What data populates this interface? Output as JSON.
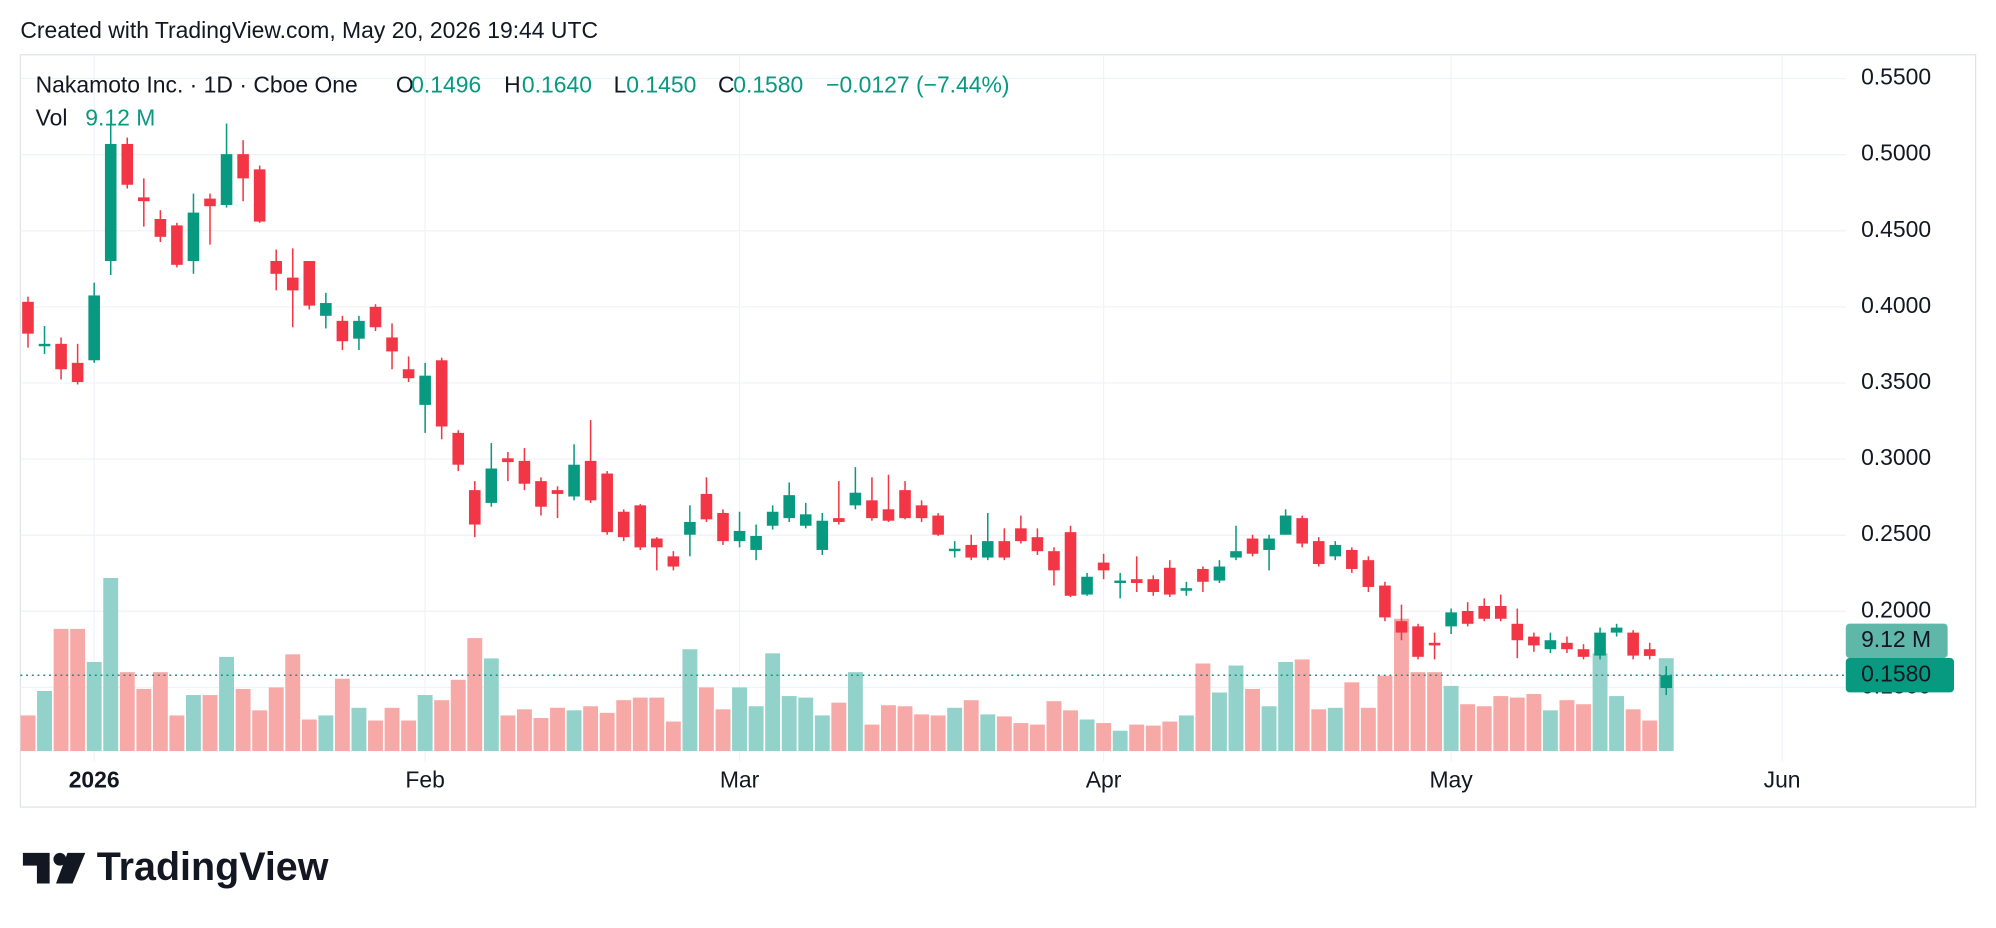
{
  "watermark": "Created with TradingView.com, May 20, 2026 19:44 UTC",
  "branding": "TradingView",
  "chart_data": {
    "type": "candlestick",
    "legend": {
      "symbol": "Nakamoto Inc. · 1D · Cboe One",
      "open_prefix": "O",
      "open_label": "0.1496",
      "high_prefix": "H",
      "high_label": "0.1640",
      "low_prefix": "L",
      "low_label": "0.1450",
      "close_prefix": "C",
      "close_label": "0.1580",
      "change_label": "−0.0127 (−7.44%)",
      "volume_prefix": "Vol",
      "volume_label": "9.12 M"
    },
    "up_color": "#089981",
    "down_color": "#f23645",
    "volume_up_color": "#92d2ca",
    "volume_down_color": "#f7a9a7",
    "volume_tag_color": "#5fb7aa",
    "grid": true,
    "open": [
      0.4033,
      0.3741,
      0.3757,
      0.3632,
      0.3649,
      0.4301,
      0.507,
      0.4719,
      0.4577,
      0.4535,
      0.4301,
      0.4711,
      0.4669,
      0.5003,
      0.4903,
      0.4301,
      0.4192,
      0.4301,
      0.3941,
      0.3908,
      0.3791,
      0.4,
      0.3799,
      0.359,
      0.3356,
      0.3649,
      0.3172,
      0.2796,
      0.2712,
      0.3005,
      0.2988,
      0.2855,
      0.2796,
      0.2754,
      0.2988,
      0.2905,
      0.2654,
      0.2696,
      0.2478,
      0.2361,
      0.2503,
      0.2771,
      0.2646,
      0.2461,
      0.2403,
      0.2562,
      0.2612,
      0.2562,
      0.2403,
      0.2612,
      0.2696,
      0.2729,
      0.267,
      0.2796,
      0.2696,
      0.2629,
      0.2395,
      0.2436,
      0.2353,
      0.2461,
      0.2545,
      0.2487,
      0.2395,
      0.252,
      0.211,
      0.232,
      0.2186,
      0.2211,
      0.2211,
      0.2286,
      0.2135,
      0.2278,
      0.2202,
      0.2353,
      0.2478,
      0.2403,
      0.2503,
      0.2612,
      0.2461,
      0.2361,
      0.2403,
      0.2336,
      0.2169,
      0.1935,
      0.1901,
      0.1793,
      0.1901,
      0.2002,
      0.2035,
      0.2035,
      0.1918,
      0.1834,
      0.1751,
      0.1793,
      0.1751,
      0.1709,
      0.186,
      0.186,
      0.1751,
      0.1496
    ],
    "high": [
      0.4067,
      0.3874,
      0.3799,
      0.3757,
      0.4159,
      0.5195,
      0.5112,
      0.4844,
      0.4635,
      0.4552,
      0.4744,
      0.4744,
      0.5204,
      0.5095,
      0.4928,
      0.4376,
      0.4384,
      0.4301,
      0.4092,
      0.3941,
      0.3941,
      0.4017,
      0.3891,
      0.3674,
      0.3632,
      0.3666,
      0.3189,
      0.2855,
      0.3105,
      0.3047,
      0.3072,
      0.288,
      0.2821,
      0.3097,
      0.3256,
      0.2921,
      0.267,
      0.2704,
      0.2487,
      0.2395,
      0.2696,
      0.288,
      0.267,
      0.2654,
      0.257,
      0.2696,
      0.2846,
      0.2712,
      0.2646,
      0.2855,
      0.2947,
      0.288,
      0.2897,
      0.2855,
      0.2729,
      0.2645,
      0.2461,
      0.2503,
      0.2646,
      0.2545,
      0.2629,
      0.2545,
      0.242,
      0.2562,
      0.2252,
      0.2378,
      0.2252,
      0.2361,
      0.2236,
      0.2336,
      0.2194,
      0.2295,
      0.2336,
      0.2562,
      0.2503,
      0.2503,
      0.267,
      0.2629,
      0.2487,
      0.2461,
      0.242,
      0.2361,
      0.2194,
      0.2044,
      0.1918,
      0.186,
      0.2018,
      0.206,
      0.2085,
      0.211,
      0.2018,
      0.186,
      0.186,
      0.1834,
      0.1784,
      0.1893,
      0.1918,
      0.1876,
      0.1793,
      0.164
    ],
    "low": [
      0.3732,
      0.369,
      0.3523,
      0.349,
      0.3632,
      0.4209,
      0.4777,
      0.4527,
      0.4426,
      0.4259,
      0.4217,
      0.4409,
      0.4652,
      0.4694,
      0.4552,
      0.4108,
      0.3866,
      0.3983,
      0.3858,
      0.3716,
      0.3716,
      0.3841,
      0.359,
      0.3506,
      0.3172,
      0.313,
      0.2921,
      0.2487,
      0.2687,
      0.2855,
      0.2796,
      0.2629,
      0.2612,
      0.2729,
      0.2712,
      0.2503,
      0.2461,
      0.2403,
      0.2269,
      0.2269,
      0.2361,
      0.2587,
      0.2436,
      0.242,
      0.2336,
      0.2537,
      0.2587,
      0.2545,
      0.237,
      0.257,
      0.267,
      0.2595,
      0.2587,
      0.2604,
      0.2587,
      0.2495,
      0.2353,
      0.2336,
      0.2336,
      0.2336,
      0.2445,
      0.237,
      0.2169,
      0.2094,
      0.2102,
      0.2211,
      0.2085,
      0.2127,
      0.2102,
      0.2094,
      0.2102,
      0.2127,
      0.2186,
      0.2336,
      0.2361,
      0.2269,
      0.2503,
      0.242,
      0.2294,
      0.2336,
      0.2252,
      0.2127,
      0.1935,
      0.181,
      0.1684,
      0.1684,
      0.1851,
      0.1901,
      0.1935,
      0.1935,
      0.1692,
      0.1734,
      0.1726,
      0.1726,
      0.1684,
      0.1684,
      0.1834,
      0.1684,
      0.1684,
      0.145
    ],
    "close": [
      0.3824,
      0.3757,
      0.359,
      0.3506,
      0.4075,
      0.507,
      0.4802,
      0.4694,
      0.446,
      0.4276,
      0.4619,
      0.4661,
      0.5003,
      0.4844,
      0.456,
      0.4217,
      0.4108,
      0.4008,
      0.4025,
      0.3774,
      0.3908,
      0.3866,
      0.3707,
      0.3531,
      0.3548,
      0.3214,
      0.2963,
      0.257,
      0.2938,
      0.298,
      0.2838,
      0.2687,
      0.2771,
      0.2963,
      0.2729,
      0.252,
      0.2487,
      0.242,
      0.242,
      0.2294,
      0.2587,
      0.2604,
      0.2461,
      0.2528,
      0.2495,
      0.2654,
      0.2763,
      0.2637,
      0.2595,
      0.2587,
      0.2779,
      0.2612,
      0.2595,
      0.2612,
      0.2612,
      0.2503,
      0.2411,
      0.2353,
      0.2461,
      0.2353,
      0.2461,
      0.2395,
      0.2269,
      0.2102,
      0.2227,
      0.2269,
      0.2202,
      0.2186,
      0.2127,
      0.211,
      0.2152,
      0.2194,
      0.2294,
      0.2395,
      0.2378,
      0.2478,
      0.2629,
      0.2445,
      0.2311,
      0.2436,
      0.2278,
      0.216,
      0.196,
      0.186,
      0.1701,
      0.1776,
      0.1993,
      0.1918,
      0.1951,
      0.1951,
      0.181,
      0.1776,
      0.181,
      0.1751,
      0.1701,
      0.186,
      0.1893,
      0.1709,
      0.1707,
      0.158
    ],
    "volume": [
      3.5,
      5.9,
      12.0,
      12.0,
      8.75,
      17.0,
      7.75,
      6.1,
      7.75,
      3.5,
      5.5,
      5.5,
      9.25,
      6.1,
      4.0,
      6.25,
      9.5,
      3.1,
      3.5,
      7.1,
      4.25,
      3.0,
      4.25,
      3.0,
      5.5,
      5.0,
      7.0,
      11.1,
      9.1,
      3.5,
      4.1,
      3.25,
      4.25,
      4.0,
      4.4,
      3.75,
      5.0,
      5.25,
      5.25,
      2.9,
      10.0,
      6.25,
      4.1,
      6.25,
      4.4,
      9.6,
      5.4,
      5.25,
      3.5,
      4.75,
      7.75,
      2.6,
      4.5,
      4.4,
      3.6,
      3.5,
      4.25,
      5.0,
      3.6,
      3.4,
      2.75,
      2.6,
      4.9,
      4.0,
      3.1,
      2.75,
      2.0,
      2.6,
      2.5,
      2.9,
      3.5,
      8.6,
      5.75,
      8.4,
      6.1,
      4.4,
      8.75,
      9.0,
      4.1,
      4.25,
      6.75,
      4.25,
      7.4,
      13.0,
      7.75,
      7.75,
      6.4,
      4.6,
      4.4,
      5.4,
      5.25,
      5.6,
      4.0,
      5.0,
      4.6,
      9.6,
      5.4,
      4.1,
      3.0,
      9.12
    ],
    "xlim": [
      -0.46,
      109.85
    ],
    "xticks": [
      {
        "value": 4,
        "label": "2026"
      },
      {
        "value": 24,
        "label": "Feb"
      },
      {
        "value": 43,
        "label": "Mar"
      },
      {
        "value": 65,
        "label": "Apr"
      },
      {
        "value": 86,
        "label": "May"
      },
      {
        "value": 106,
        "label": "Jun"
      }
    ],
    "ylim": [
      0.1082,
      0.5656
    ],
    "yticks": [
      {
        "value": 0.15,
        "label": "0.1500"
      },
      {
        "value": 0.2,
        "label": "0.2000"
      },
      {
        "value": 0.25,
        "label": "0.2500"
      },
      {
        "value": 0.3,
        "label": "0.3000"
      },
      {
        "value": 0.35,
        "label": "0.3500"
      },
      {
        "value": 0.4,
        "label": "0.4000"
      },
      {
        "value": 0.45,
        "label": "0.4500"
      },
      {
        "value": 0.5,
        "label": "0.5000"
      },
      {
        "value": 0.55,
        "label": "0.5500"
      }
    ],
    "volume_ylim": [
      0,
      68.4
    ]
  }
}
